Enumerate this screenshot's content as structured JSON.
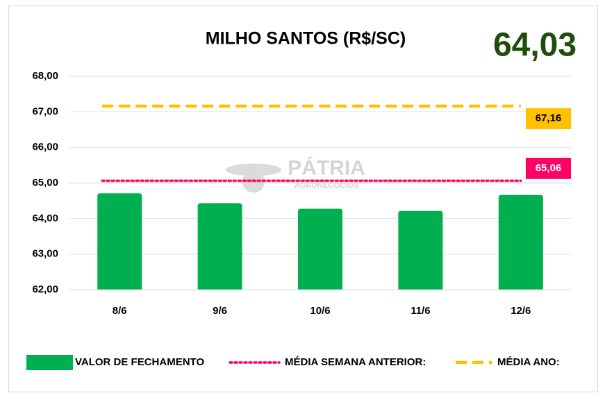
{
  "chart_data": {
    "type": "bar",
    "title": "MILHO SANTOS (R$/SC)",
    "headline": "64,03",
    "watermark": "PÁTRIA",
    "watermark_subtitle": "AGRONEGÓCIOS",
    "categories": [
      "8/6",
      "9/6",
      "10/6",
      "11/6",
      "12/6"
    ],
    "series": [
      {
        "name": "VALOR DE FECHAMENTO",
        "color": "#00b050",
        "style": "bar",
        "values": [
          64.71,
          64.43,
          64.28,
          64.22,
          64.67
        ]
      },
      {
        "name": "MÉDIA SEMANA ANTERIOR:",
        "color": "#ff0066",
        "style": "dotted",
        "values": [
          65.06,
          65.06,
          65.06,
          65.06,
          65.06
        ],
        "value_label": "65,06"
      },
      {
        "name": "MÉDIA ANO:",
        "color": "#ffc000",
        "style": "dashed",
        "values": [
          67.16,
          67.16,
          67.16,
          67.16,
          67.16
        ],
        "value_label": "67,16"
      }
    ],
    "ylim": [
      62,
      68
    ],
    "yticks": [
      {
        "value": 62,
        "label": "62,00"
      },
      {
        "value": 63,
        "label": "63,00"
      },
      {
        "value": 64,
        "label": "64,00"
      },
      {
        "value": 65,
        "label": "65,00"
      },
      {
        "value": 66,
        "label": "66,00"
      },
      {
        "value": 67,
        "label": "67,00"
      },
      {
        "value": 68,
        "label": "68,00"
      }
    ],
    "grid": true
  }
}
